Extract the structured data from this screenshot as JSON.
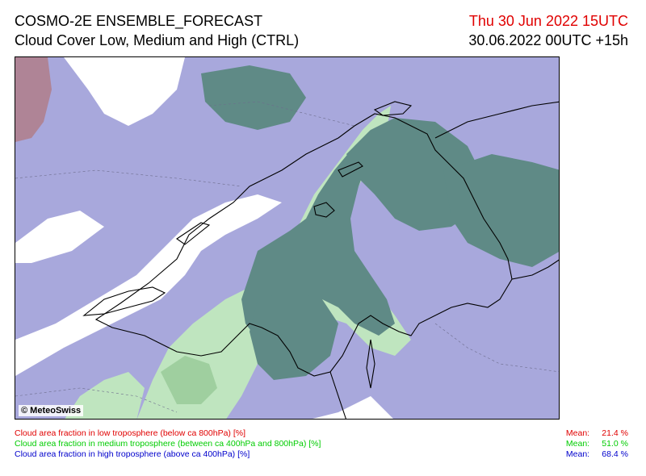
{
  "header": {
    "title_line1": "COSMO-2E ENSEMBLE_FORECAST",
    "title_line2": "Cloud Cover Low, Medium and High (CTRL)",
    "valid_date": "Thu 30 Jun 2022 15UTC",
    "run_info": "30.06.2022 00UTC +15h"
  },
  "map": {
    "credit": "© MeteoSwiss",
    "colors": {
      "low": "#e00000",
      "medium": "#00cc00",
      "high": "#0000cc",
      "high_cloud_fill": "#a8a8dc",
      "med_high_fill": "#5f8a86",
      "medium_fill": "#bfe5bf",
      "low_tint": "#b07a84",
      "clear": "#ffffff"
    }
  },
  "legend": {
    "low": "Cloud area fraction in low troposphere (below ca 800hPa) [%]",
    "medium": "Cloud area fraction in medium troposphere (between ca 400hPa and 800hPa) [%]",
    "high": "Cloud area fraction in high troposphere (above ca 400hPa) [%]"
  },
  "means": {
    "label": "Mean:",
    "low": "21.4 %",
    "medium": "51.0 %",
    "high": "68.4 %"
  }
}
